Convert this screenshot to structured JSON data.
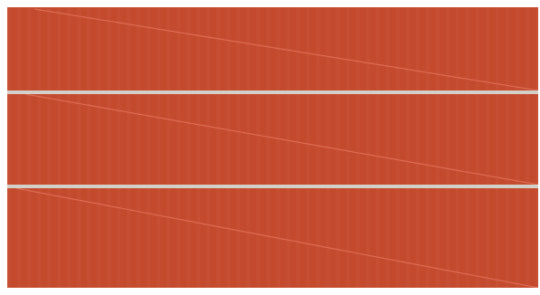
{
  "colors": {
    "panel_fill": "#c44a2e",
    "panel_stripe": "#c95236",
    "diagonal_line": "#e0735a",
    "separator": "#d3cfc9",
    "background": "#ffffff"
  },
  "panels": [
    {
      "name": "panel-top"
    },
    {
      "name": "panel-middle"
    },
    {
      "name": "panel-bottom"
    }
  ]
}
